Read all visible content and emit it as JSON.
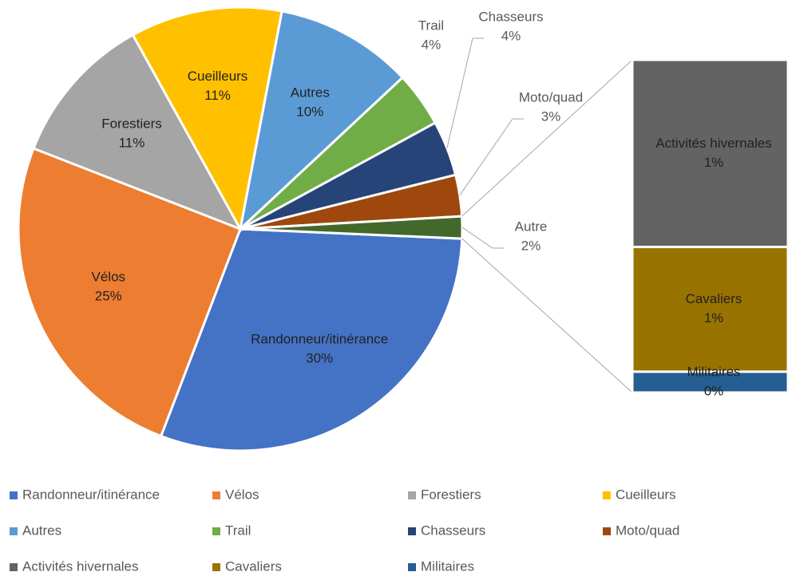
{
  "chart_data": {
    "type": "pie",
    "categories": [
      "Randonneur/itinérance",
      "Vélos",
      "Forestiers",
      "Cueilleurs",
      "Autres",
      "Trail",
      "Chasseurs",
      "Moto/quad",
      "Autre"
    ],
    "values": [
      30,
      25,
      11,
      11,
      10,
      4,
      4,
      3,
      1.6
    ],
    "value_labels": [
      "30%",
      "25%",
      "11%",
      "11%",
      "10%",
      "4%",
      "4%",
      "3%",
      "2%"
    ],
    "colors": [
      "#4472c4",
      "#ed7d31",
      "#a5a5a5",
      "#ffc000",
      "#5b9bd5",
      "#70ad47",
      "#264478",
      "#9e480e",
      "#43682b"
    ],
    "bar": {
      "categories": [
        "Activités hivernales",
        "Cavaliers",
        "Militaires"
      ],
      "values": [
        0.9,
        0.6,
        0.1
      ],
      "value_labels": [
        "1%",
        "1%",
        "0%"
      ],
      "colors": [
        "#636363",
        "#997300",
        "#255e91"
      ]
    },
    "legend": true
  }
}
